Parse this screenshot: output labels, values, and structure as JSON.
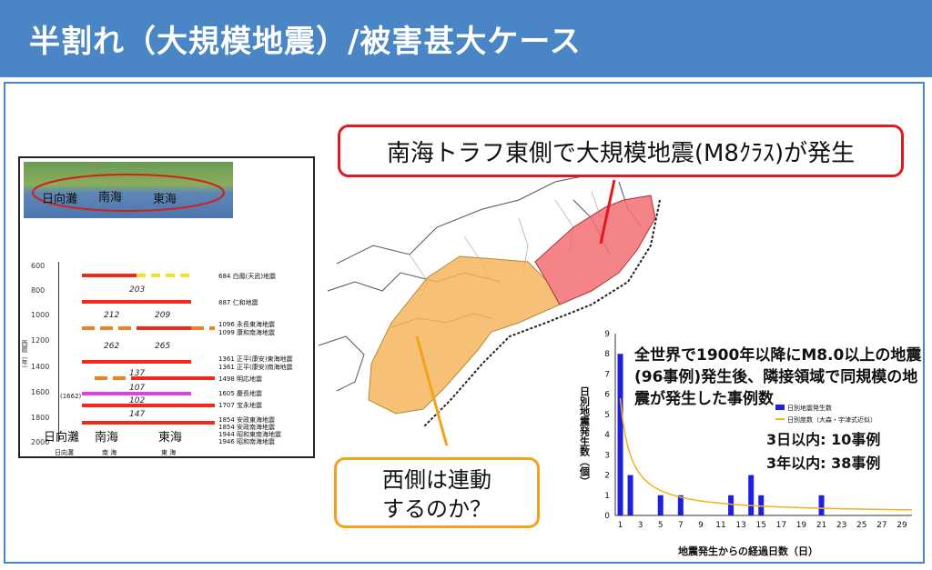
{
  "header": {
    "title": "半割れ（大規模地震）/被害甚大ケース"
  },
  "callouts": {
    "east": "南海トラフ東側で大規模地震(M8ｸﾗｽ)が発生",
    "west_line1": "西側は連動",
    "west_line2": "するのか？"
  },
  "history_panel": {
    "map_regions": [
      "日向灘",
      "南海",
      "東海"
    ],
    "y_ticks": [
      "600",
      "800",
      "1000",
      "1200",
      "1400",
      "1600",
      "1800",
      "2000"
    ],
    "y_axis_label": "西暦（年）",
    "intervals": [
      "203",
      "212",
      "209",
      "262",
      "265",
      "137",
      "107",
      "102",
      "147"
    ],
    "year_1662": "(1662)",
    "quakes": [
      "684 白鳳(天武)地震",
      "887 仁和地震",
      "1096 永長東海地震",
      "1099 康和南海地震",
      "1361 正平(康安)東海地震",
      "1361 正平(康安)南海地震",
      "1498 明応地震",
      "1605 慶長地震",
      "1707 宝永地震",
      "1854 安政東海地震",
      "1854 安政南海地震",
      "1944 昭和東南海地震",
      "1946 昭和南海地震"
    ],
    "bottom_regions": [
      "日向灘",
      "南海",
      "東海"
    ],
    "bottom_small": [
      "日向灘",
      "南 海",
      "東 海"
    ]
  },
  "chart_data": {
    "type": "bar",
    "x": [
      1,
      2,
      5,
      7,
      12,
      14,
      15,
      21
    ],
    "values": [
      8,
      2,
      1,
      1,
      1,
      2,
      1,
      1
    ],
    "x_ticks": [
      "1",
      "3",
      "5",
      "7",
      "9",
      "11",
      "13",
      "15",
      "17",
      "19",
      "21",
      "23",
      "25",
      "27",
      "29"
    ],
    "y_ticks": [
      "0",
      "1",
      "2",
      "3",
      "4",
      "5",
      "6",
      "7",
      "8",
      "9"
    ],
    "ylim": [
      0,
      9
    ],
    "xlabel": "地震発生からの経過日数（日）",
    "ylabel": "日別地震発生数（個）",
    "legend": [
      "日別地震発生数",
      "日別度数（大森・宇津式近似）"
    ],
    "colors": {
      "bars": "#1f1fe0",
      "fit": "#f2b21c"
    },
    "note": "全世界で1900年以降にM8.0以上の地震(96事例)発生後、隣接領域で同規模の地震が発生した事例数",
    "stat1": "3日以内: 10事例",
    "stat2": "3年以内: 38事例"
  },
  "colors": {
    "header": "#4a85c6",
    "east_zone": "#f26e73",
    "west_zone": "#f5b55e",
    "red_border": "#e0191f",
    "orange_border": "#f5a21a"
  }
}
